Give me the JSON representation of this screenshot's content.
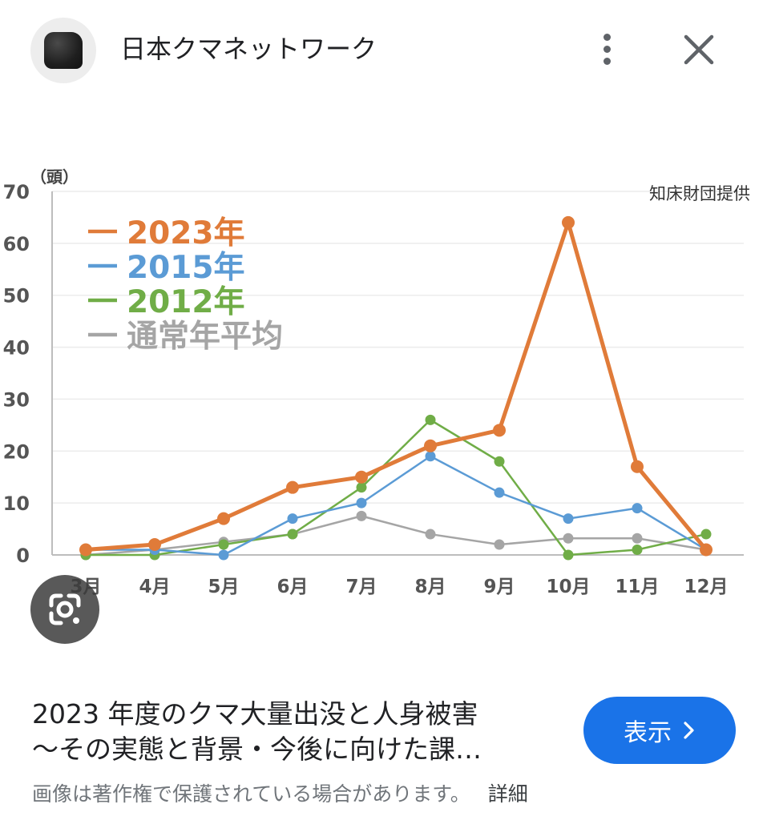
{
  "header": {
    "source_name": "日本クマネットワーク",
    "avatar_icon": "bear-avatar-icon",
    "more_icon": "more-vert-icon",
    "close_icon": "close-icon"
  },
  "chart_data": {
    "type": "line",
    "ylabel": "（頭）",
    "credit": "知床財団提供",
    "categories": [
      "3月",
      "4月",
      "5月",
      "6月",
      "7月",
      "8月",
      "9月",
      "10月",
      "11月",
      "12月"
    ],
    "yticks": [
      0,
      10,
      20,
      30,
      40,
      50,
      60,
      70
    ],
    "ylim": [
      0,
      70
    ],
    "grid": true,
    "legend_position": "top-left",
    "series": [
      {
        "name": "2023年",
        "color": "#e07b39",
        "values": [
          1,
          2,
          7,
          13,
          15,
          21,
          24,
          64,
          17,
          1
        ]
      },
      {
        "name": "2015年",
        "color": "#5b9bd5",
        "values": [
          1,
          1,
          0,
          7,
          10,
          19,
          12,
          7,
          9,
          1
        ]
      },
      {
        "name": "2012年",
        "color": "#70ad47",
        "values": [
          0,
          0,
          2,
          4,
          13,
          26,
          18,
          0,
          1,
          4
        ]
      },
      {
        "name": "通常年平均",
        "color": "#a5a5a5",
        "values": [
          0,
          1,
          2.5,
          4,
          7.5,
          4,
          2,
          3.2,
          3.2,
          1
        ]
      }
    ]
  },
  "lens_icon": "lens-icon",
  "footer": {
    "title_line1": "2023 年度のクマ大量出没と人身被害",
    "title_line2": "〜その実態と背景・今後に向けた課…",
    "view_button": "表示",
    "view_icon": "chevron-right-icon",
    "copyright_notice": "画像は著作権で保護されている場合があります。",
    "details_link": "詳細",
    "accent_color": "#1a73e8"
  }
}
